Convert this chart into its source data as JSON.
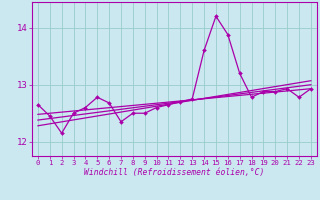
{
  "xlabel": "Windchill (Refroidissement éolien,°C)",
  "bg_color": "#cbe8f0",
  "line_color": "#aa00aa",
  "grid_color": "#99cccc",
  "x_values": [
    0,
    1,
    2,
    3,
    4,
    5,
    6,
    7,
    8,
    9,
    10,
    11,
    12,
    13,
    14,
    15,
    16,
    17,
    18,
    19,
    20,
    21,
    22,
    23
  ],
  "y_main": [
    12.65,
    12.45,
    12.15,
    12.5,
    12.6,
    12.78,
    12.68,
    12.35,
    12.5,
    12.5,
    12.6,
    12.65,
    12.7,
    12.75,
    13.6,
    14.2,
    13.88,
    13.2,
    12.78,
    12.88,
    12.88,
    12.93,
    12.78,
    12.93
  ],
  "trend1": [
    12.48,
    12.93
  ],
  "trend2": [
    12.38,
    13.0
  ],
  "trend3": [
    12.28,
    13.07
  ],
  "ylim": [
    11.75,
    14.45
  ],
  "yticks": [
    12,
    13,
    14
  ],
  "xlim": [
    -0.5,
    23.5
  ]
}
